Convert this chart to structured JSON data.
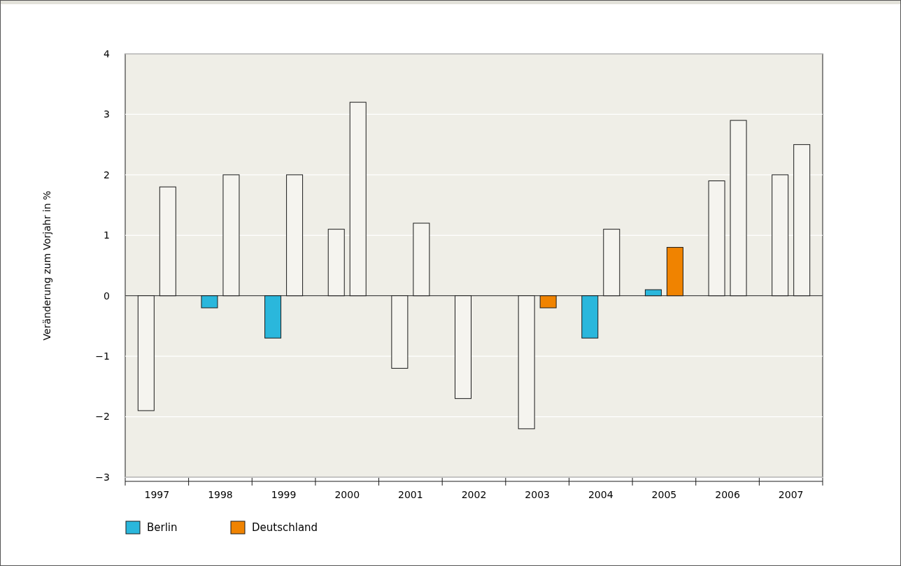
{
  "chart_data": {
    "type": "bar",
    "ylabel": "Veränderung zum Vorjahr in %",
    "categories": [
      "1997",
      "1998",
      "1999",
      "2000",
      "2001",
      "2002",
      "2003",
      "2004",
      "2005",
      "2006",
      "2007"
    ],
    "series": [
      {
        "name": "Berlin",
        "color": "#2ab7dc",
        "values": [
          -1.9,
          -0.2,
          -0.7,
          1.1,
          -1.2,
          -1.7,
          -2.2,
          -0.7,
          0.1,
          1.9,
          2.0
        ],
        "colors": [
          "#f5f4ef",
          "#2ab7dc",
          "#2ab7dc",
          "#f5f4ef",
          "#f5f4ef",
          "#f5f4ef",
          "#f5f4ef",
          "#2ab7dc",
          "#2ab7dc",
          "#f5f4ef",
          "#f5f4ef"
        ]
      },
      {
        "name": "Deutschland",
        "color": "#f08300",
        "values": [
          1.8,
          2.0,
          2.0,
          3.2,
          1.2,
          0,
          -0.2,
          1.1,
          0.8,
          2.9,
          2.5
        ],
        "colors": [
          "#f5f4ef",
          "#f5f4ef",
          "#f5f4ef",
          "#f5f4ef",
          "#f5f4ef",
          "#f5f4ef",
          "#f08300",
          "#f5f4ef",
          "#f08300",
          "#f5f4ef",
          "#f5f4ef"
        ]
      }
    ],
    "ylim": [
      -3,
      4
    ],
    "yticks": [
      {
        "value": -3,
        "label": "−3"
      },
      {
        "value": -2,
        "label": "−2"
      },
      {
        "value": -1,
        "label": "−1"
      },
      0,
      1,
      2,
      3,
      4
    ],
    "grid": "y",
    "legend": "bottom left"
  }
}
